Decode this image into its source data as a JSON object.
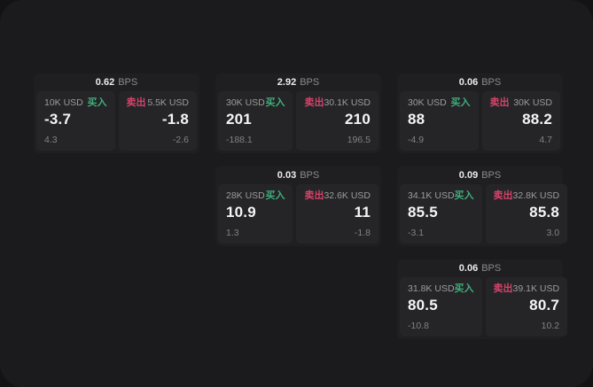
{
  "labels": {
    "bps_unit": "BPS",
    "buy": "买入",
    "sell": "卖出"
  },
  "colors": {
    "buy_accent": "#3fae7c",
    "sell_accent": "#d5436a",
    "window_bg": "#1b1b1d",
    "card_bg": "#1f1f21",
    "panel_bg": "#252527"
  },
  "cards": [
    {
      "bps": "0.62",
      "buy": {
        "amount": "10K USD",
        "price": "-3.7",
        "sub": "4.3"
      },
      "sell": {
        "amount": "5.5K USD",
        "price": "-1.8",
        "sub": "-2.6"
      }
    },
    {
      "bps": "2.92",
      "buy": {
        "amount": "30K USD",
        "price": "201",
        "sub": "-188.1"
      },
      "sell": {
        "amount": "30.1K USD",
        "price": "210",
        "sub": "196.5"
      }
    },
    {
      "bps": "0.06",
      "buy": {
        "amount": "30K USD",
        "price": "88",
        "sub": "-4.9"
      },
      "sell": {
        "amount": "30K USD",
        "price": "88.2",
        "sub": "4.7"
      }
    },
    {
      "bps": "0.03",
      "buy": {
        "amount": "28K USD",
        "price": "10.9",
        "sub": "1.3"
      },
      "sell": {
        "amount": "32.6K USD",
        "price": "11",
        "sub": "-1.8"
      }
    },
    {
      "bps": "0.09",
      "buy": {
        "amount": "34.1K USD",
        "price": "85.5",
        "sub": "-3.1"
      },
      "sell": {
        "amount": "32.8K USD",
        "price": "85.8",
        "sub": "3.0"
      }
    },
    {
      "bps": "0.06",
      "buy": {
        "amount": "31.8K USD",
        "price": "80.5",
        "sub": "-10.8"
      },
      "sell": {
        "amount": "39.1K USD",
        "price": "80.7",
        "sub": "10.2"
      }
    }
  ]
}
